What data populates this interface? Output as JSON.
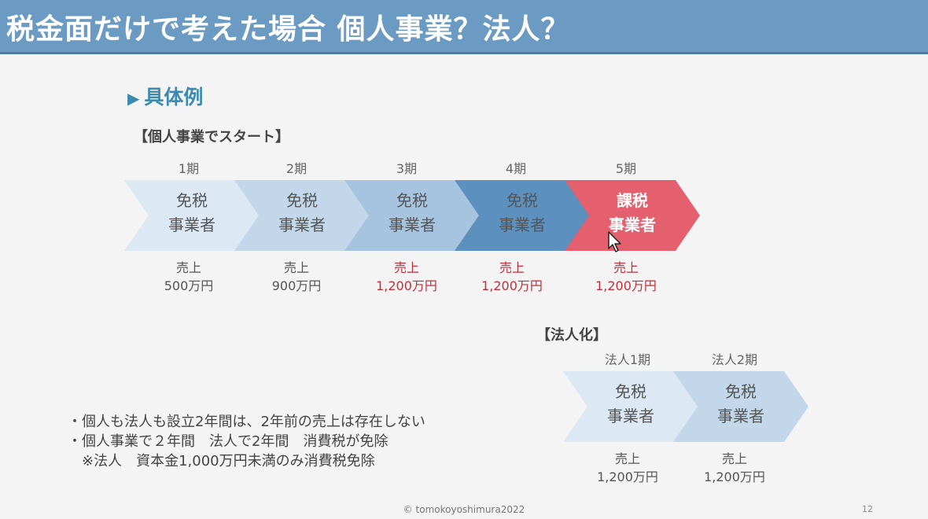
{
  "title": "税金面だけで考えた場合 個人事業？法人？",
  "section": {
    "marker": "▶",
    "label": "具体例"
  },
  "individual": {
    "label": "【個人事業でスタート】",
    "periods": [
      {
        "period": "1期",
        "status_line1": "免税",
        "status_line2": "事業者",
        "sales_label": "売上",
        "sales_value": "500万円"
      },
      {
        "period": "2期",
        "status_line1": "免税",
        "status_line2": "事業者",
        "sales_label": "売上",
        "sales_value": "900万円"
      },
      {
        "period": "3期",
        "status_line1": "免税",
        "status_line2": "事業者",
        "sales_label": "売上",
        "sales_value": "1,200万円"
      },
      {
        "period": "4期",
        "status_line1": "免税",
        "status_line2": "事業者",
        "sales_label": "売上",
        "sales_value": "1,200万円"
      },
      {
        "period": "5期",
        "status_line1": "課税",
        "status_line2": "事業者",
        "sales_label": "売上",
        "sales_value": "1,200万円"
      }
    ]
  },
  "corporation": {
    "label": "【法人化】",
    "periods": [
      {
        "period": "法人1期",
        "status_line1": "免税",
        "status_line2": "事業者",
        "sales_label": "売上",
        "sales_value": "1,200万円"
      },
      {
        "period": "法人2期",
        "status_line1": "免税",
        "status_line2": "事業者",
        "sales_label": "売上",
        "sales_value": "1,200万円"
      }
    ]
  },
  "notes": [
    "・個人も法人も設立2年間は、2年前の売上は存在しない",
    "・個人事業で２年間　法人で2年間　消費税が免除",
    "　※法人　資本金1,000万円未満のみ消費税免除"
  ],
  "footer": "© tomokoyoshimura2022",
  "page_number": "12",
  "colors": {
    "title_bar": "#6b9ac2",
    "chevron_1": "#dce8f3",
    "chevron_2": "#c2d7ea",
    "chevron_3": "#a6c4df",
    "chevron_4": "#5c90bf",
    "chevron_taxable": "#e4606e",
    "highlight_text": "#c0303a",
    "section_accent": "#3d8ab0"
  }
}
